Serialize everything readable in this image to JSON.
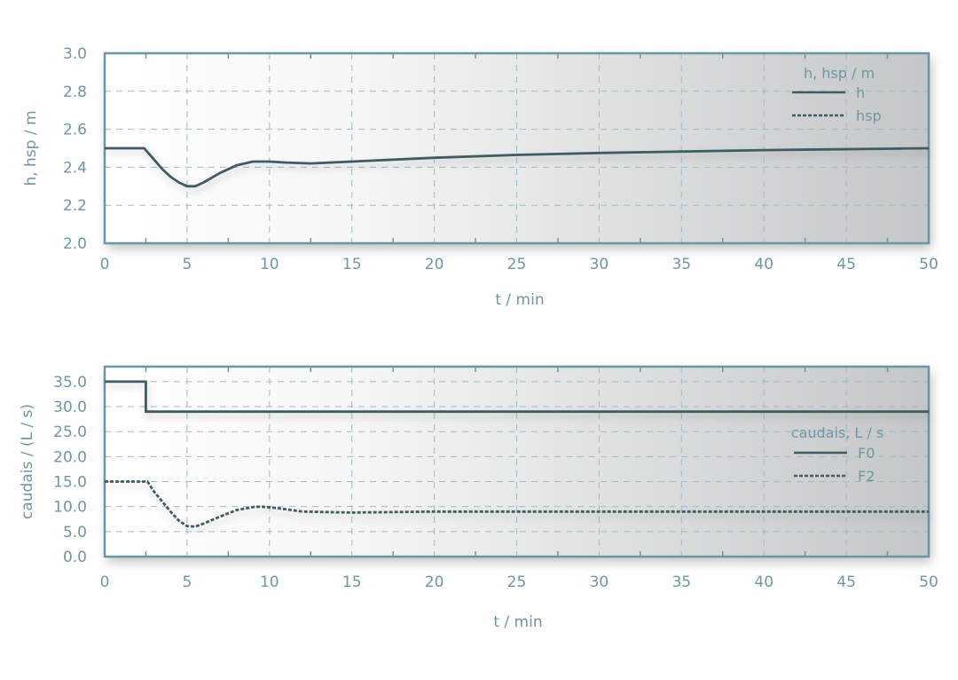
{
  "colors": {
    "axis": "#6a97a5",
    "line": "#3f5b64",
    "grid": "#9fbcc6",
    "plot_bg_light": "#ffffff",
    "plot_bg_dark": "#c4c6c7"
  },
  "chart_data": [
    {
      "type": "line",
      "xlabel": "t / min",
      "ylabel": "h, hsp / m",
      "xlim": [
        0,
        50
      ],
      "ylim": [
        2.0,
        3.0
      ],
      "xticks": [
        "0",
        "5",
        "10",
        "15",
        "20",
        "25",
        "30",
        "35",
        "40",
        "45",
        "50"
      ],
      "yticks": [
        "2.0",
        "2.2",
        "2.4",
        "2.6",
        "2.8",
        "3.0"
      ],
      "grid": true,
      "legend": {
        "title": "h, hsp / m",
        "placement": "top-right"
      },
      "series": [
        {
          "name": "h",
          "style": "solid",
          "x": [
            0,
            2.4,
            3,
            3.5,
            4,
            4.5,
            5,
            5.5,
            6,
            7,
            8,
            9,
            10,
            11,
            12.5,
            15,
            20,
            25,
            30,
            40,
            50
          ],
          "y": [
            2.5,
            2.5,
            2.44,
            2.39,
            2.35,
            2.32,
            2.3,
            2.3,
            2.32,
            2.37,
            2.41,
            2.43,
            2.43,
            2.425,
            2.42,
            2.43,
            2.45,
            2.465,
            2.475,
            2.49,
            2.5
          ]
        },
        {
          "name": "hsp",
          "style": "dashed",
          "x": [
            0,
            50
          ],
          "y": [
            2.5,
            2.5
          ]
        }
      ]
    },
    {
      "type": "line",
      "xlabel": "t / min",
      "ylabel": "caudais / (L / s)",
      "xlim": [
        0,
        50
      ],
      "ylim": [
        0,
        38
      ],
      "xticks": [
        "0",
        "5",
        "10",
        "15",
        "20",
        "25",
        "30",
        "35",
        "40",
        "45",
        "50"
      ],
      "yticks": [
        "0.0",
        "5.0",
        "10.0",
        "15.0",
        "20.0",
        "25.0",
        "30.0",
        "35.0"
      ],
      "grid": true,
      "legend": {
        "title": "caudais, L / s",
        "placement": "right"
      },
      "series": [
        {
          "name": "F0",
          "style": "solid",
          "x": [
            0,
            2.5,
            2.5,
            50
          ],
          "y": [
            35,
            35,
            29,
            29
          ]
        },
        {
          "name": "F2",
          "style": "dashed",
          "x": [
            0,
            2.6,
            3,
            3.5,
            4,
            4.5,
            5,
            5.5,
            6,
            7,
            8,
            9,
            9.5,
            10.5,
            12,
            15,
            20,
            30,
            50
          ],
          "y": [
            15,
            15,
            13,
            11,
            9,
            7.2,
            6.1,
            6,
            6.6,
            8,
            9.3,
            9.9,
            10,
            9.7,
            9,
            8.8,
            9,
            9,
            9
          ]
        }
      ]
    }
  ]
}
